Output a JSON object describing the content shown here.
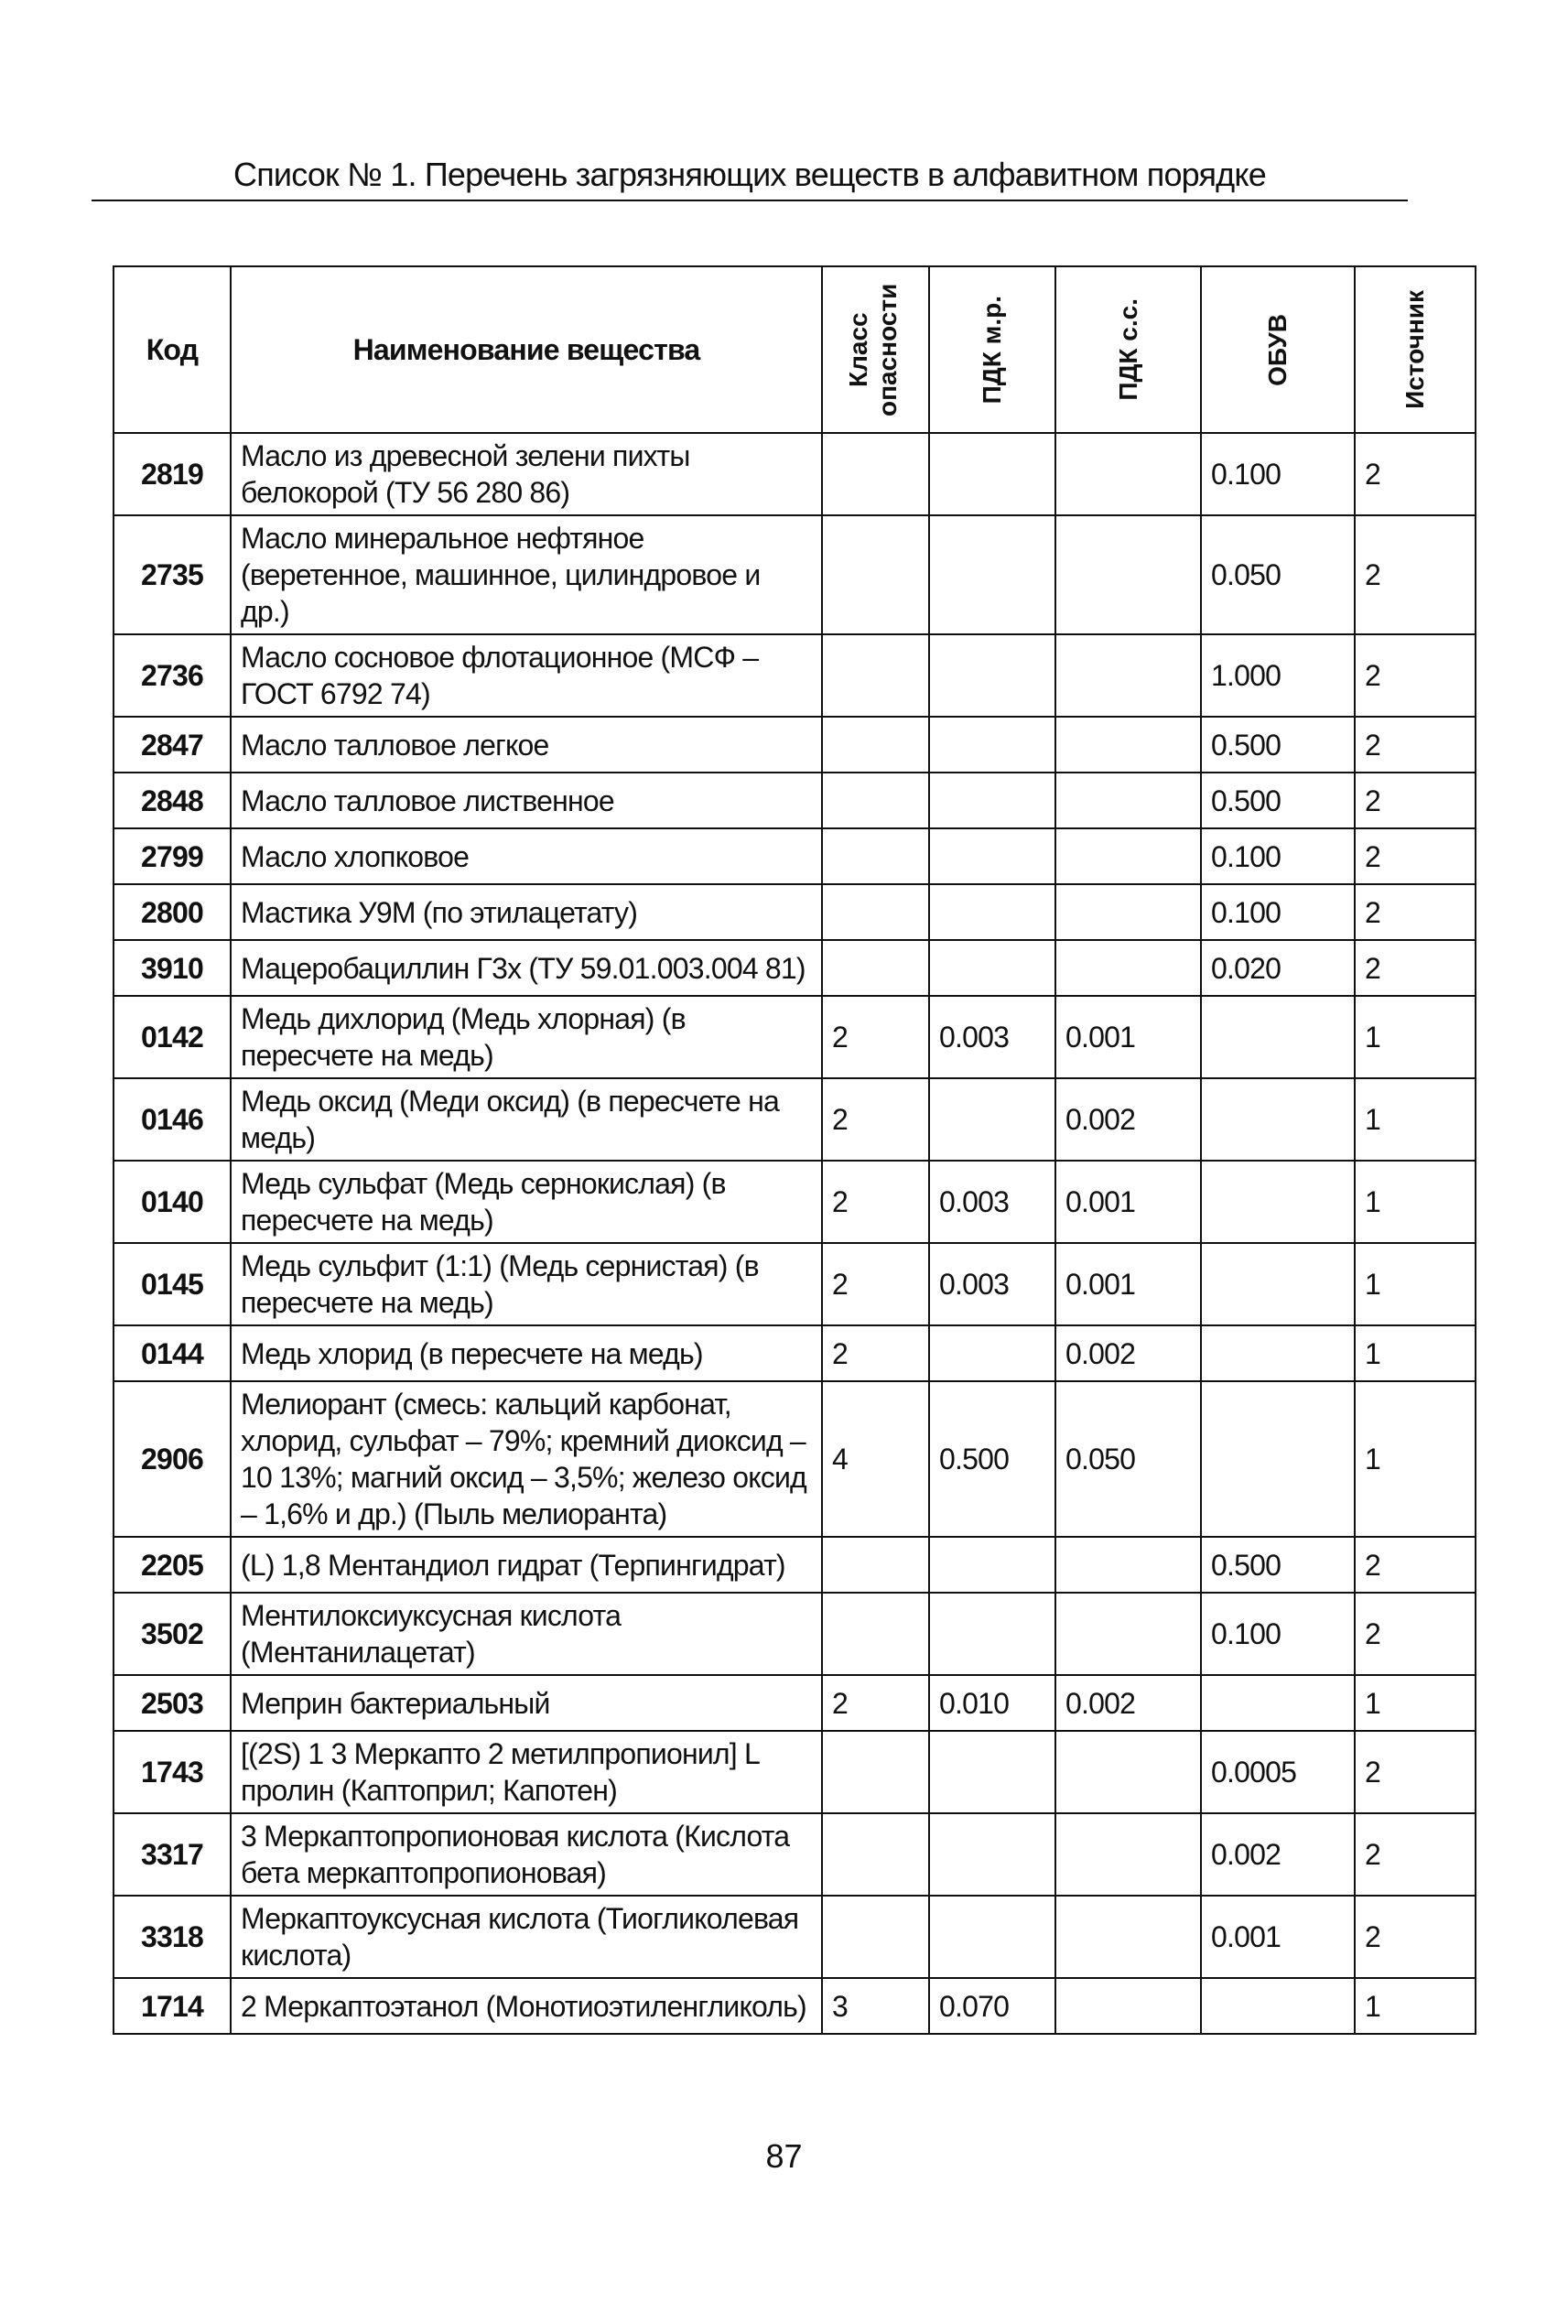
{
  "title": "Список № 1. Перечень загрязняющих веществ в алфавитном порядке",
  "headers": {
    "code": "Код",
    "name": "Наименование вещества",
    "hazard_class": "Класс опасности",
    "pdk_mr": "ПДК м.р.",
    "pdk_ss": "ПДК с.с.",
    "obuv": "ОБУВ",
    "source": "Источник"
  },
  "rows": [
    {
      "code": "2819",
      "name": "Масло из древесной зелени пихты белокорой (ТУ 56 280 86)",
      "hazard_class": "",
      "pdk_mr": "",
      "pdk_ss": "",
      "obuv": "0.100",
      "source": "2"
    },
    {
      "code": "2735",
      "name": "Масло минеральное нефтяное (веретенное, машинное, цилиндровое и др.)",
      "hazard_class": "",
      "pdk_mr": "",
      "pdk_ss": "",
      "obuv": "0.050",
      "source": "2"
    },
    {
      "code": "2736",
      "name": "Масло сосновое флотационное (МСФ – ГОСТ 6792 74)",
      "hazard_class": "",
      "pdk_mr": "",
      "pdk_ss": "",
      "obuv": "1.000",
      "source": "2"
    },
    {
      "code": "2847",
      "name": "Масло талловое легкое",
      "hazard_class": "",
      "pdk_mr": "",
      "pdk_ss": "",
      "obuv": "0.500",
      "source": "2"
    },
    {
      "code": "2848",
      "name": "Масло талловое лиственное",
      "hazard_class": "",
      "pdk_mr": "",
      "pdk_ss": "",
      "obuv": "0.500",
      "source": "2"
    },
    {
      "code": "2799",
      "name": "Масло хлопковое",
      "hazard_class": "",
      "pdk_mr": "",
      "pdk_ss": "",
      "obuv": "0.100",
      "source": "2"
    },
    {
      "code": "2800",
      "name": "Мастика У9М (по этилацетату)",
      "hazard_class": "",
      "pdk_mr": "",
      "pdk_ss": "",
      "obuv": "0.100",
      "source": "2"
    },
    {
      "code": "3910",
      "name": "Мацеробациллин Г3х (ТУ 59.01.003.004 81)",
      "hazard_class": "",
      "pdk_mr": "",
      "pdk_ss": "",
      "obuv": "0.020",
      "source": "2"
    },
    {
      "code": "0142",
      "name": "Медь дихлорид (Медь хлорная) (в пересчете на медь)",
      "hazard_class": "2",
      "pdk_mr": "0.003",
      "pdk_ss": "0.001",
      "obuv": "",
      "source": "1"
    },
    {
      "code": "0146",
      "name": "Медь оксид (Меди оксид) (в пересчете на медь)",
      "hazard_class": "2",
      "pdk_mr": "",
      "pdk_ss": "0.002",
      "obuv": "",
      "source": "1"
    },
    {
      "code": "0140",
      "name": "Медь сульфат (Медь сернокислая) (в пересчете на медь)",
      "hazard_class": "2",
      "pdk_mr": "0.003",
      "pdk_ss": "0.001",
      "obuv": "",
      "source": "1"
    },
    {
      "code": "0145",
      "name": "Медь сульфит (1:1) (Медь сернистая) (в пересчете на медь)",
      "hazard_class": "2",
      "pdk_mr": "0.003",
      "pdk_ss": "0.001",
      "obuv": "",
      "source": "1"
    },
    {
      "code": "0144",
      "name": "Медь хлорид (в пересчете на медь)",
      "hazard_class": "2",
      "pdk_mr": "",
      "pdk_ss": "0.002",
      "obuv": "",
      "source": "1"
    },
    {
      "code": "2906",
      "name": "Мелиорант (смесь: кальций карбонат, хлорид, сульфат – 79%; кремний диоксид – 10 13%; магний оксид – 3,5%; железо оксид – 1,6% и др.) (Пыль мелиоранта)",
      "hazard_class": "4",
      "pdk_mr": "0.500",
      "pdk_ss": "0.050",
      "obuv": "",
      "source": "1"
    },
    {
      "code": "2205",
      "name": "(L) 1,8 Ментандиол гидрат (Терпингидрат)",
      "hazard_class": "",
      "pdk_mr": "",
      "pdk_ss": "",
      "obuv": "0.500",
      "source": "2"
    },
    {
      "code": "3502",
      "name": "Ментилоксиуксусная кислота (Ментанилацетат)",
      "hazard_class": "",
      "pdk_mr": "",
      "pdk_ss": "",
      "obuv": "0.100",
      "source": "2"
    },
    {
      "code": "2503",
      "name": "Меприн бактериальный",
      "hazard_class": "2",
      "pdk_mr": "0.010",
      "pdk_ss": "0.002",
      "obuv": "",
      "source": "1"
    },
    {
      "code": "1743",
      "name": "[(2S) 1 3 Меркапто 2 метилпропионил] L пролин (Каптоприл; Капотен)",
      "hazard_class": "",
      "pdk_mr": "",
      "pdk_ss": "",
      "obuv": "0.0005",
      "source": "2"
    },
    {
      "code": "3317",
      "name": "3 Меркаптопропионовая кислота (Кислота бета меркаптопропионовая)",
      "hazard_class": "",
      "pdk_mr": "",
      "pdk_ss": "",
      "obuv": "0.002",
      "source": "2"
    },
    {
      "code": "3318",
      "name": "Меркаптоуксусная кислота (Тиогликолевая кислота)",
      "hazard_class": "",
      "pdk_mr": "",
      "pdk_ss": "",
      "obuv": "0.001",
      "source": "2"
    },
    {
      "code": "1714",
      "name": "2 Меркаптоэтанол (Монотиоэтиленгликоль)",
      "hazard_class": "3",
      "pdk_mr": "0.070",
      "pdk_ss": "",
      "obuv": "",
      "source": "1"
    }
  ],
  "page_number": "87"
}
